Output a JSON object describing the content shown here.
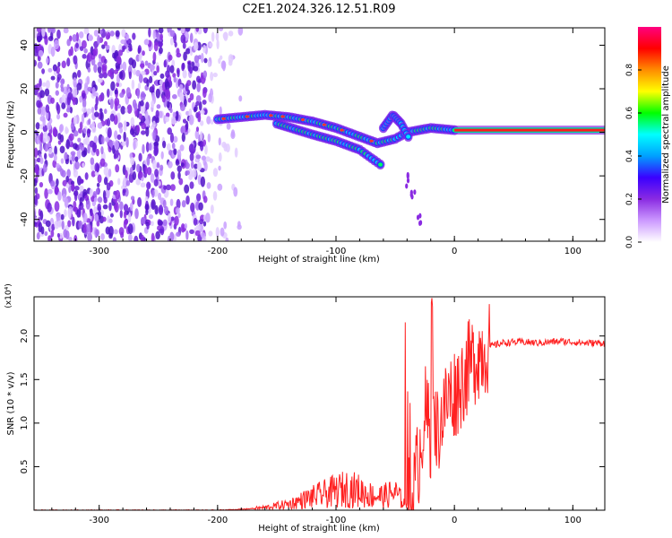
{
  "title": "C2E1.2024.326.12.51.R09",
  "chart_data": [
    {
      "type": "heatmap",
      "xlabel": "Height of straight line (km)",
      "ylabel": "Frequency (Hz)",
      "xlim": [
        -355,
        127
      ],
      "ylim": [
        -50,
        48
      ],
      "x_ticks": [
        -300,
        -200,
        -100,
        0,
        100
      ],
      "y_ticks": [
        -40,
        -20,
        0,
        20,
        40
      ],
      "colorbar": {
        "label": "Normalized spectral amplitude",
        "range": [
          0,
          1
        ],
        "ticks": [
          "0.0",
          "0.2",
          "0.4",
          "0.6",
          "0.8"
        ],
        "colors": [
          "#ffffff",
          "#cc99ff",
          "#8a2be2",
          "#3a00ff",
          "#00a0ff",
          "#00ffff",
          "#00ff00",
          "#ffff00",
          "#ff8c00",
          "#ff0000",
          "#ff0080"
        ]
      },
      "noise_region_x": [
        -355,
        -180
      ],
      "main_ridge": [
        {
          "x": -200,
          "y": 6
        },
        {
          "x": -180,
          "y": 7
        },
        {
          "x": -160,
          "y": 8
        },
        {
          "x": -140,
          "y": 7
        },
        {
          "x": -120,
          "y": 5
        },
        {
          "x": -100,
          "y": 2
        },
        {
          "x": -80,
          "y": -2
        },
        {
          "x": -65,
          "y": -5
        },
        {
          "x": -50,
          "y": -3
        },
        {
          "x": -40,
          "y": 0
        },
        {
          "x": -20,
          "y": 2
        },
        {
          "x": 0,
          "y": 1
        },
        {
          "x": 50,
          "y": 0.5
        },
        {
          "x": 127,
          "y": 0.5
        }
      ],
      "lower_branch": [
        {
          "x": -150,
          "y": 4
        },
        {
          "x": -120,
          "y": -1
        },
        {
          "x": -100,
          "y": -4
        },
        {
          "x": -80,
          "y": -8
        },
        {
          "x": -62,
          "y": -15
        }
      ],
      "upper_branch": [
        {
          "x": -60,
          "y": 2
        },
        {
          "x": -52,
          "y": 8
        },
        {
          "x": -45,
          "y": 4
        },
        {
          "x": -38,
          "y": -3
        }
      ],
      "tail_branch": [
        {
          "x": -40,
          "y": -22
        },
        {
          "x": -35,
          "y": -30
        },
        {
          "x": -30,
          "y": -40
        }
      ]
    },
    {
      "type": "line",
      "xlabel": "Height of straight line (km)",
      "ylabel": "SNR (10 * v/v)",
      "yscale_label": "(x10⁴)",
      "xlim": [
        -355,
        127
      ],
      "ylim": [
        0,
        2.45
      ],
      "x_ticks": [
        -300,
        -200,
        -100,
        0,
        100
      ],
      "y_ticks": [
        0.5,
        1.0,
        1.5,
        2.0
      ],
      "y_tick_labels": [
        "0.5",
        "1.0",
        "1.5",
        "2.0"
      ],
      "series": [
        {
          "color": "#ff2020",
          "x": [
            -355,
            -300,
            -250,
            -200,
            -180,
            -160,
            -140,
            -120,
            -100,
            -90,
            -80,
            -70,
            -60,
            -50,
            -40,
            -35,
            -30,
            -25,
            -20,
            -15,
            -10,
            -5,
            0,
            5,
            10,
            20,
            30,
            40,
            50,
            60,
            70,
            80,
            90,
            100,
            110,
            127
          ],
          "y": [
            0.0,
            0.0,
            0.0,
            0.0,
            0.01,
            0.03,
            0.07,
            0.15,
            0.22,
            0.25,
            0.22,
            0.17,
            0.16,
            0.2,
            0.05,
            0.15,
            0.6,
            1.15,
            0.85,
            0.9,
            1.1,
            1.3,
            1.35,
            1.45,
            1.6,
            1.8,
            1.88,
            1.92,
            1.93,
            1.93,
            1.92,
            1.93,
            1.94,
            1.93,
            1.92,
            1.92
          ]
        }
      ],
      "grid": false
    }
  ]
}
